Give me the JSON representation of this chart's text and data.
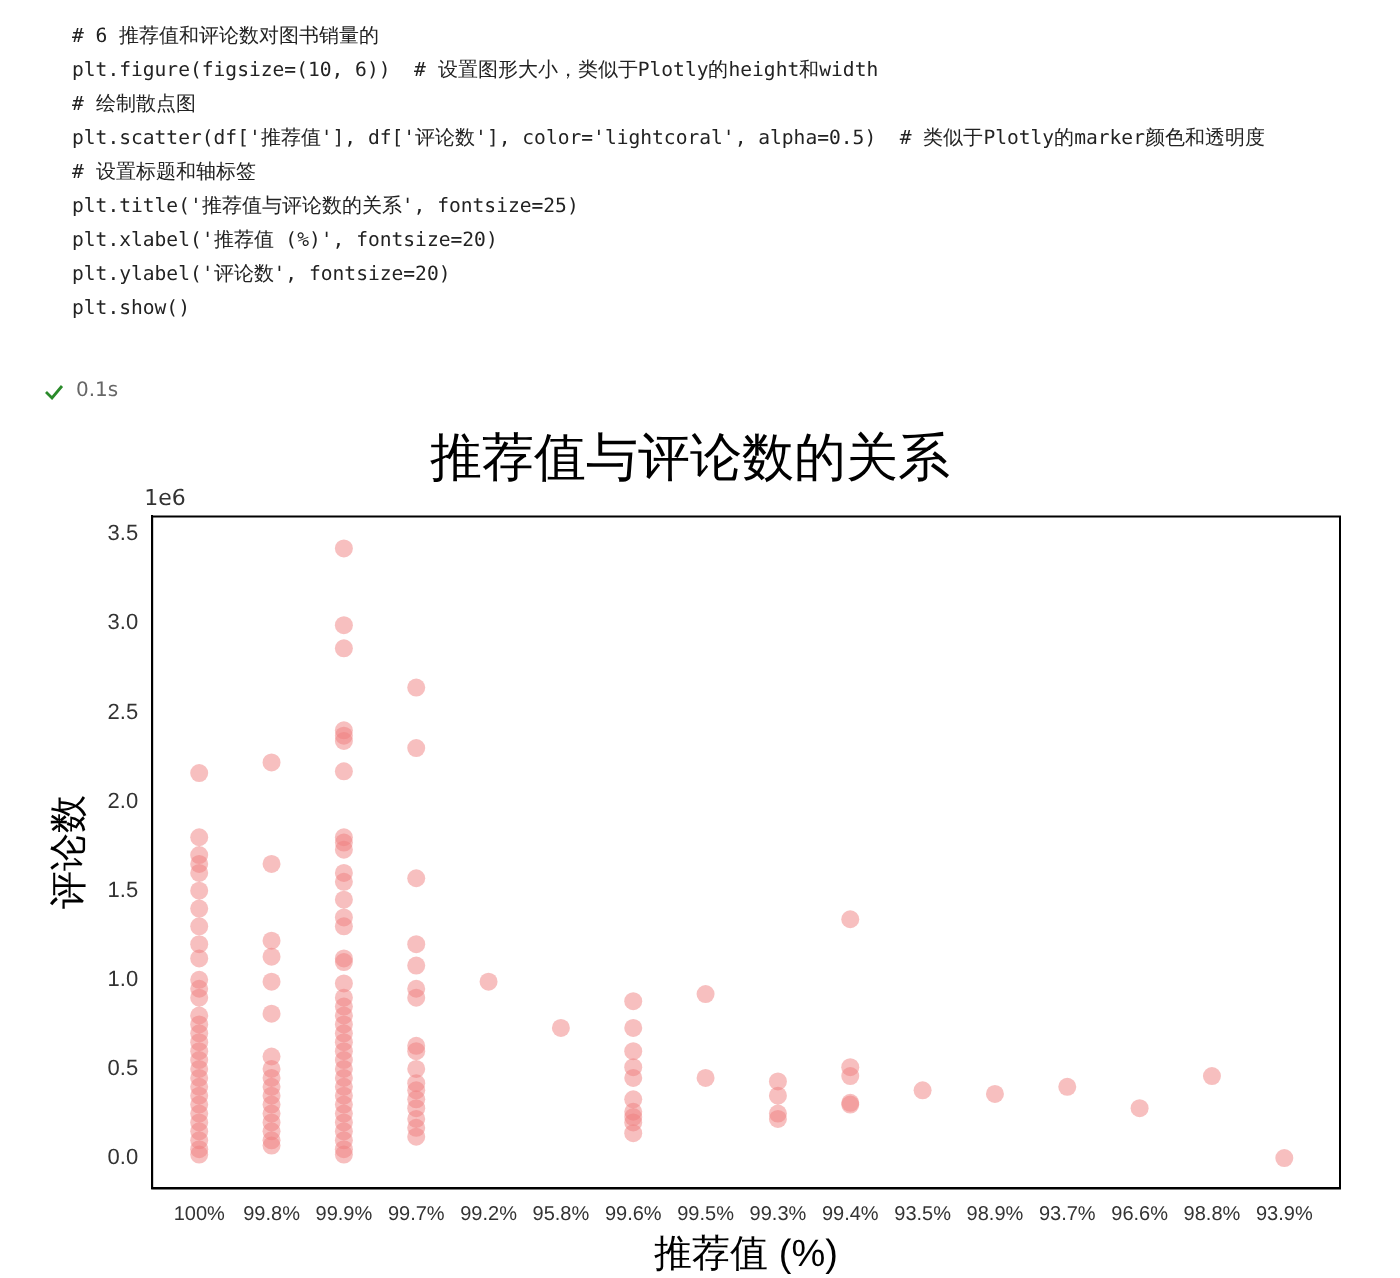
{
  "chart_data": {
    "type": "scatter",
    "title": "推荐值与评论数的关系",
    "xlabel": "推荐值 (%)",
    "ylabel": "评论数",
    "annotations": [
      "# 6 推荐值和评论数对图书销量的",
      "plt.figure(figsize=(10, 6))  # 设置图形大小，类似于Plotly的height和width",
      "# 绘制散点图",
      "plt.scatter(df['推荐值'], df['评论数'], color='lightcoral', alpha=0.5)  # 类似于Plotly的marker颜色和透明度",
      "# 设置标题和轴标签",
      "plt.title('推荐值与评论数的关系', fontsize=25)",
      "plt.xlabel('推荐值 (%)', fontsize=20)",
      "plt.ylabel('评论数', fontsize=20)",
      "plt.show()",
      "0.1s",
      "1e6"
    ],
    "categories": [
      "100%",
      "99.8%",
      "99.9%",
      "99.7%",
      "99.2%",
      "95.8%",
      "99.6%",
      "99.5%",
      "99.3%",
      "99.4%",
      "93.5%",
      "98.9%",
      "93.7%",
      "96.6%",
      "98.8%",
      "93.9%"
    ],
    "series": [
      {
        "color": "#f08080",
        "x": [
          "100%",
          "100%",
          "100%",
          "100%",
          "100%",
          "100%",
          "100%",
          "100%",
          "100%",
          "100%",
          "100%",
          "100%",
          "100%",
          "100%",
          "100%",
          "100%",
          "100%",
          "100%",
          "100%",
          "100%",
          "100%",
          "100%",
          "100%",
          "100%",
          "100%",
          "100%",
          "100%",
          "100%",
          "100%",
          "100%",
          "99.8%",
          "99.8%",
          "99.8%",
          "99.8%",
          "99.8%",
          "99.8%",
          "99.8%",
          "99.8%",
          "99.8%",
          "99.8%",
          "99.8%",
          "99.8%",
          "99.8%",
          "99.8%",
          "99.8%",
          "99.8%",
          "99.8%",
          "99.9%",
          "99.9%",
          "99.9%",
          "99.9%",
          "99.9%",
          "99.9%",
          "99.9%",
          "99.9%",
          "99.9%",
          "99.9%",
          "99.9%",
          "99.9%",
          "99.9%",
          "99.9%",
          "99.9%",
          "99.9%",
          "99.9%",
          "99.9%",
          "99.9%",
          "99.9%",
          "99.9%",
          "99.9%",
          "99.9%",
          "99.9%",
          "99.9%",
          "99.9%",
          "99.9%",
          "99.9%",
          "99.9%",
          "99.9%",
          "99.9%",
          "99.9%",
          "99.9%",
          "99.9%",
          "99.9%",
          "99.9%",
          "99.9%",
          "99.7%",
          "99.7%",
          "99.7%",
          "99.7%",
          "99.7%",
          "99.7%",
          "99.7%",
          "99.7%",
          "99.7%",
          "99.7%",
          "99.7%",
          "99.7%",
          "99.7%",
          "99.7%",
          "99.7%",
          "99.7%",
          "99.7%",
          "99.2%",
          "95.8%",
          "99.6%",
          "99.6%",
          "99.6%",
          "99.6%",
          "99.6%",
          "99.6%",
          "99.6%",
          "99.6%",
          "99.6%",
          "99.6%",
          "99.5%",
          "99.5%",
          "99.3%",
          "99.3%",
          "99.3%",
          "99.3%",
          "99.4%",
          "99.4%",
          "99.4%",
          "99.4%",
          "99.4%",
          "93.5%",
          "98.9%",
          "93.7%",
          "96.6%",
          "98.8%",
          "93.9%"
        ],
        "values": [
          2.16,
          1.8,
          1.7,
          1.65,
          1.6,
          1.5,
          1.4,
          1.3,
          1.2,
          1.12,
          1.0,
          0.95,
          0.9,
          0.8,
          0.75,
          0.7,
          0.65,
          0.6,
          0.55,
          0.5,
          0.45,
          0.4,
          0.35,
          0.3,
          0.25,
          0.2,
          0.15,
          0.1,
          0.05,
          0.02,
          2.22,
          1.65,
          1.22,
          1.13,
          0.99,
          0.81,
          0.57,
          0.5,
          0.45,
          0.4,
          0.35,
          0.3,
          0.25,
          0.2,
          0.15,
          0.1,
          0.07,
          3.42,
          2.99,
          2.86,
          2.4,
          2.37,
          2.34,
          2.17,
          1.8,
          1.77,
          1.73,
          1.6,
          1.55,
          1.45,
          1.35,
          1.3,
          1.12,
          1.1,
          0.98,
          0.9,
          0.85,
          0.8,
          0.75,
          0.7,
          0.65,
          0.6,
          0.55,
          0.5,
          0.45,
          0.4,
          0.35,
          0.3,
          0.25,
          0.2,
          0.15,
          0.1,
          0.05,
          0.02,
          2.64,
          2.3,
          1.57,
          1.2,
          1.08,
          0.95,
          0.9,
          0.63,
          0.6,
          0.5,
          0.42,
          0.38,
          0.33,
          0.28,
          0.22,
          0.17,
          0.12,
          0.99,
          0.73,
          0.88,
          0.73,
          0.6,
          0.51,
          0.45,
          0.33,
          0.26,
          0.23,
          0.2,
          0.14,
          0.92,
          0.45,
          0.43,
          0.35,
          0.25,
          0.22,
          1.34,
          0.51,
          0.46,
          0.31,
          0.3,
          0.38,
          0.36,
          0.4,
          0.28,
          0.46,
          0.0
        ]
      }
    ],
    "ylim": [
      -0.17,
      3.6
    ],
    "yticks": [
      {
        "value": 0,
        "label": "0.0"
      },
      0.5,
      {
        "value": 1,
        "label": "1.0"
      },
      1.5,
      {
        "value": 2,
        "label": "2.0"
      },
      2.5,
      {
        "value": 3,
        "label": "3.0"
      },
      3.5
    ],
    "grid": false,
    "legend": false,
    "marker": "circle"
  }
}
